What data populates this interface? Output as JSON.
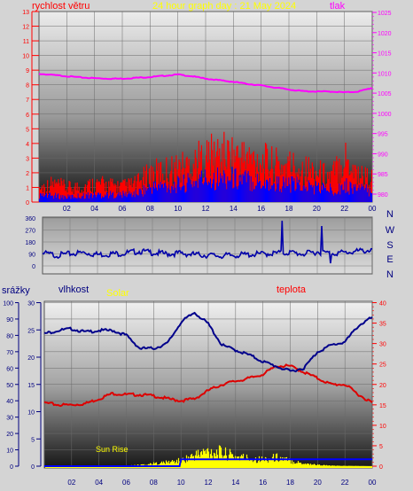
{
  "header": {
    "wind_label": "rychlost větru",
    "title": "24 hour graph day : 21 May 2024",
    "pressure_label": "tlak"
  },
  "direction_labels": [
    "N",
    "W",
    "S",
    "E",
    "N"
  ],
  "bottom_labels": {
    "rain": "srážky",
    "humidity": "vlhkost",
    "solar": "Solar",
    "temperature": "teplota",
    "sunrise": "Sun Rise"
  },
  "colors": {
    "wind_gust": "#ff0000",
    "wind_avg": "#0000ff",
    "pressure": "#ff00ff",
    "direction": "#0000aa",
    "humidity": "#00008b",
    "temperature": "#dd0000",
    "solar": "#ffff00",
    "rain_axis": "#000080",
    "bg": "#d4d4d4"
  },
  "chart_data": [
    {
      "type": "line",
      "title": "24 hour graph day : 21 May 2024",
      "x_ticks": [
        "02",
        "04",
        "06",
        "08",
        "10",
        "12",
        "14",
        "16",
        "18",
        "20",
        "22",
        "00"
      ],
      "y_left_label": "rychlost větru",
      "y_left_ticks": [
        0,
        1,
        2,
        3,
        4,
        5,
        6,
        7,
        8,
        9,
        10,
        11,
        12,
        13
      ],
      "y_right_label": "tlak",
      "y_right_ticks": [
        980,
        985,
        990,
        995,
        1000,
        1005,
        1010,
        1015,
        1020,
        1025
      ],
      "series": [
        {
          "name": "tlak",
          "axis": "right",
          "x": [
            0,
            1,
            2,
            3,
            4,
            5,
            6,
            7,
            8,
            9,
            10,
            11,
            12,
            13,
            14,
            15,
            16,
            17,
            18,
            19,
            20,
            21,
            22,
            23,
            24
          ],
          "values": [
            1009.8,
            1009.5,
            1009.2,
            1008.9,
            1008.7,
            1008.6,
            1008.6,
            1008.8,
            1009.0,
            1009.3,
            1009.6,
            1009.2,
            1008.6,
            1008.2,
            1007.8,
            1007.3,
            1006.9,
            1006.4,
            1005.9,
            1005.5,
            1005.4,
            1005.4,
            1005.2,
            1005.4,
            1006.3
          ]
        },
        {
          "name": "rychlost větru",
          "axis": "left",
          "x": [
            0,
            1,
            2,
            3,
            4,
            5,
            6,
            7,
            8,
            9,
            10,
            11,
            12,
            13,
            14,
            15,
            16,
            17,
            18,
            19,
            20,
            21,
            22,
            23,
            24
          ],
          "gust": [
            1.0,
            1.3,
            1.0,
            1.1,
            1.3,
            1.2,
            1.1,
            1.3,
            2.0,
            2.2,
            2.4,
            2.7,
            3.2,
            3.4,
            3.3,
            3.1,
            2.9,
            2.6,
            2.6,
            2.4,
            2.1,
            1.8,
            3.2,
            2.0,
            1.6
          ],
          "avg": [
            0.5,
            0.5,
            0.4,
            0.5,
            0.6,
            0.6,
            0.6,
            0.7,
            1.2,
            1.3,
            1.4,
            1.6,
            1.9,
            2.0,
            1.9,
            1.8,
            1.6,
            1.5,
            1.4,
            1.3,
            1.2,
            1.0,
            1.3,
            1.1,
            0.9
          ]
        }
      ]
    },
    {
      "type": "line",
      "y_ticks": [
        0,
        90,
        180,
        270,
        360
      ],
      "y_right_labels": [
        "N",
        "W",
        "S",
        "E",
        "N"
      ],
      "series": [
        {
          "name": "direction",
          "x": [
            0,
            1,
            2,
            3,
            4,
            5,
            6,
            7,
            8,
            9,
            10,
            11,
            12,
            13,
            14,
            15,
            16,
            17,
            18,
            19,
            20,
            21,
            22,
            23,
            24
          ],
          "values": [
            95,
            80,
            90,
            100,
            85,
            90,
            95,
            110,
            100,
            90,
            95,
            85,
            80,
            75,
            80,
            85,
            90,
            95,
            100,
            90,
            105,
            95,
            100,
            110,
            120
          ]
        }
      ]
    },
    {
      "type": "line",
      "x_ticks": [
        "02",
        "04",
        "06",
        "08",
        "10",
        "12",
        "14",
        "16",
        "18",
        "20",
        "22",
        "00"
      ],
      "y_rain_label": "srážky",
      "y_rain_ticks": [
        0,
        10,
        20,
        30,
        40,
        50,
        60,
        70,
        80,
        90,
        100
      ],
      "y_humidity_label": "vlhkost",
      "y_humidity_ticks": [
        0,
        5,
        10,
        15,
        20,
        25,
        30
      ],
      "y_temp_label": "teplota",
      "y_temp_ticks": [
        0,
        5,
        10,
        15,
        20,
        25,
        30,
        35,
        40
      ],
      "solar_label": "Solar",
      "annotation": "Sun Rise",
      "series": [
        {
          "name": "vlhkost",
          "x": [
            0,
            1,
            2,
            3,
            4,
            5,
            6,
            7,
            8,
            9,
            10,
            11,
            12,
            13,
            14,
            15,
            16,
            17,
            18,
            19,
            20,
            21,
            22,
            23,
            24
          ],
          "values": [
            81,
            83,
            84,
            82,
            83,
            83,
            80,
            72,
            72,
            75,
            88,
            94,
            87,
            74,
            71,
            68,
            64,
            61,
            58,
            60,
            70,
            74,
            76,
            86,
            91
          ]
        },
        {
          "name": "teplota",
          "x": [
            0,
            1,
            2,
            3,
            4,
            5,
            6,
            7,
            8,
            9,
            10,
            11,
            12,
            13,
            14,
            15,
            16,
            17,
            18,
            19,
            20,
            21,
            22,
            23,
            24
          ],
          "values": [
            15.5,
            15.0,
            15.0,
            15.3,
            16.5,
            17.8,
            17.5,
            17.5,
            17.2,
            16.5,
            16.0,
            16.5,
            18.5,
            20.0,
            20.8,
            21.5,
            22.5,
            24.5,
            24.5,
            23.0,
            21.5,
            20.0,
            20.0,
            17.5,
            15.5
          ]
        },
        {
          "name": "srážky",
          "x": [
            0,
            9.9,
            10.0,
            24
          ],
          "values": [
            0,
            0,
            4.2,
            4.2
          ]
        },
        {
          "name": "Solar",
          "x": [
            0,
            6,
            7,
            8,
            9,
            10,
            11,
            12,
            13,
            14,
            15,
            16,
            17,
            18,
            19,
            20,
            21,
            24
          ],
          "values": [
            0,
            0.1,
            0.3,
            0.6,
            0.9,
            1.3,
            2.5,
            3.4,
            3.0,
            2.2,
            1.8,
            1.5,
            2.0,
            1.2,
            0.6,
            0.3,
            0.1,
            0
          ]
        }
      ]
    }
  ]
}
